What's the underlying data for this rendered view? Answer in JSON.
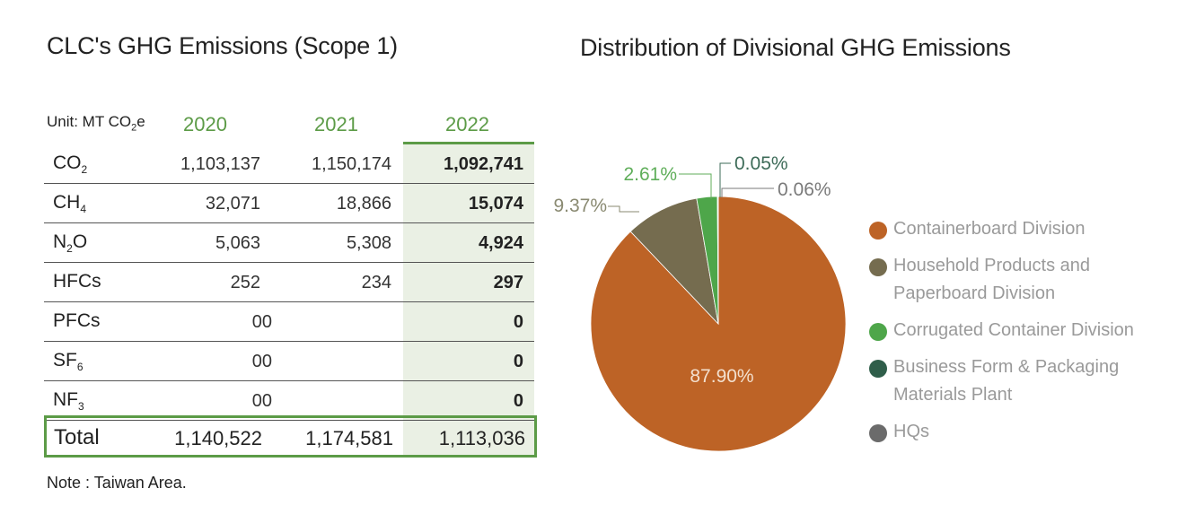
{
  "left_title": "CLC's GHG Emissions  (Scope 1)",
  "right_title": "Distribution of Divisional GHG Emissions",
  "table": {
    "unit_prefix": "Unit: MT CO",
    "unit_sub": "2",
    "unit_suffix": "e",
    "years": [
      "2020",
      "2021",
      "2022"
    ],
    "rows": [
      {
        "gas": "CO",
        "sub": "2",
        "v2020": "1,103,137",
        "v2021": "1,150,174",
        "v2022": "1,092,741"
      },
      {
        "gas": "CH",
        "sub": "4",
        "v2020": "32,071",
        "v2021": "18,866",
        "v2022": "15,074"
      },
      {
        "gas": "N",
        "sub": "2",
        "suffix": "O",
        "v2020": "5,063",
        "v2021": "5,308",
        "v2022": "4,924"
      },
      {
        "gas": "HFCs",
        "v2020": "252",
        "v2021": "234",
        "v2022": "297"
      },
      {
        "gas": "PFCs",
        "v_mid": "00",
        "v2022": "0"
      },
      {
        "gas": "SF",
        "sub": "6",
        "v_mid": "00",
        "v2022": "0"
      },
      {
        "gas": "NF",
        "sub": "3",
        "v_mid": "00",
        "v2022": "0"
      }
    ],
    "total": {
      "label": "Total",
      "v2020": "1,140,522",
      "v2021": "1,174,581",
      "v2022": "1,113,036"
    }
  },
  "note": "Note : Taiwan Area.",
  "chart_data": {
    "type": "pie",
    "title": "Distribution of Divisional GHG Emissions",
    "legend_position": "right",
    "slices": [
      {
        "name": "Containerboard Division",
        "value": 87.9,
        "label": "87.90%",
        "color": "#bd6326"
      },
      {
        "name": "Household Products and Paperboard Division",
        "value": 9.37,
        "label": "9.37%",
        "color": "#756c4f"
      },
      {
        "name": "Corrugated Container Division",
        "value": 2.61,
        "label": "2.61%",
        "color": "#4ea64a"
      },
      {
        "name": "Business Form & Packaging Materials Plant",
        "value": 0.05,
        "label": "0.05%",
        "color": "#2f5e4a"
      },
      {
        "name": "HQs",
        "value": 0.06,
        "label": "0.06%",
        "color": "#6b6b6b"
      }
    ],
    "legend": [
      {
        "line1": "Containerboard Division",
        "line2": "",
        "color": "#bd6326"
      },
      {
        "line1": "Household Products and",
        "line2": "Paperboard Division",
        "color": "#756c4f"
      },
      {
        "line1": "Corrugated Container Division",
        "line2": "",
        "color": "#4ea64a"
      },
      {
        "line1": "Business Form & Packaging",
        "line2": "Materials Plant",
        "color": "#2f5e4a"
      },
      {
        "line1": "HQs",
        "line2": "",
        "color": "#6b6b6b"
      }
    ]
  }
}
